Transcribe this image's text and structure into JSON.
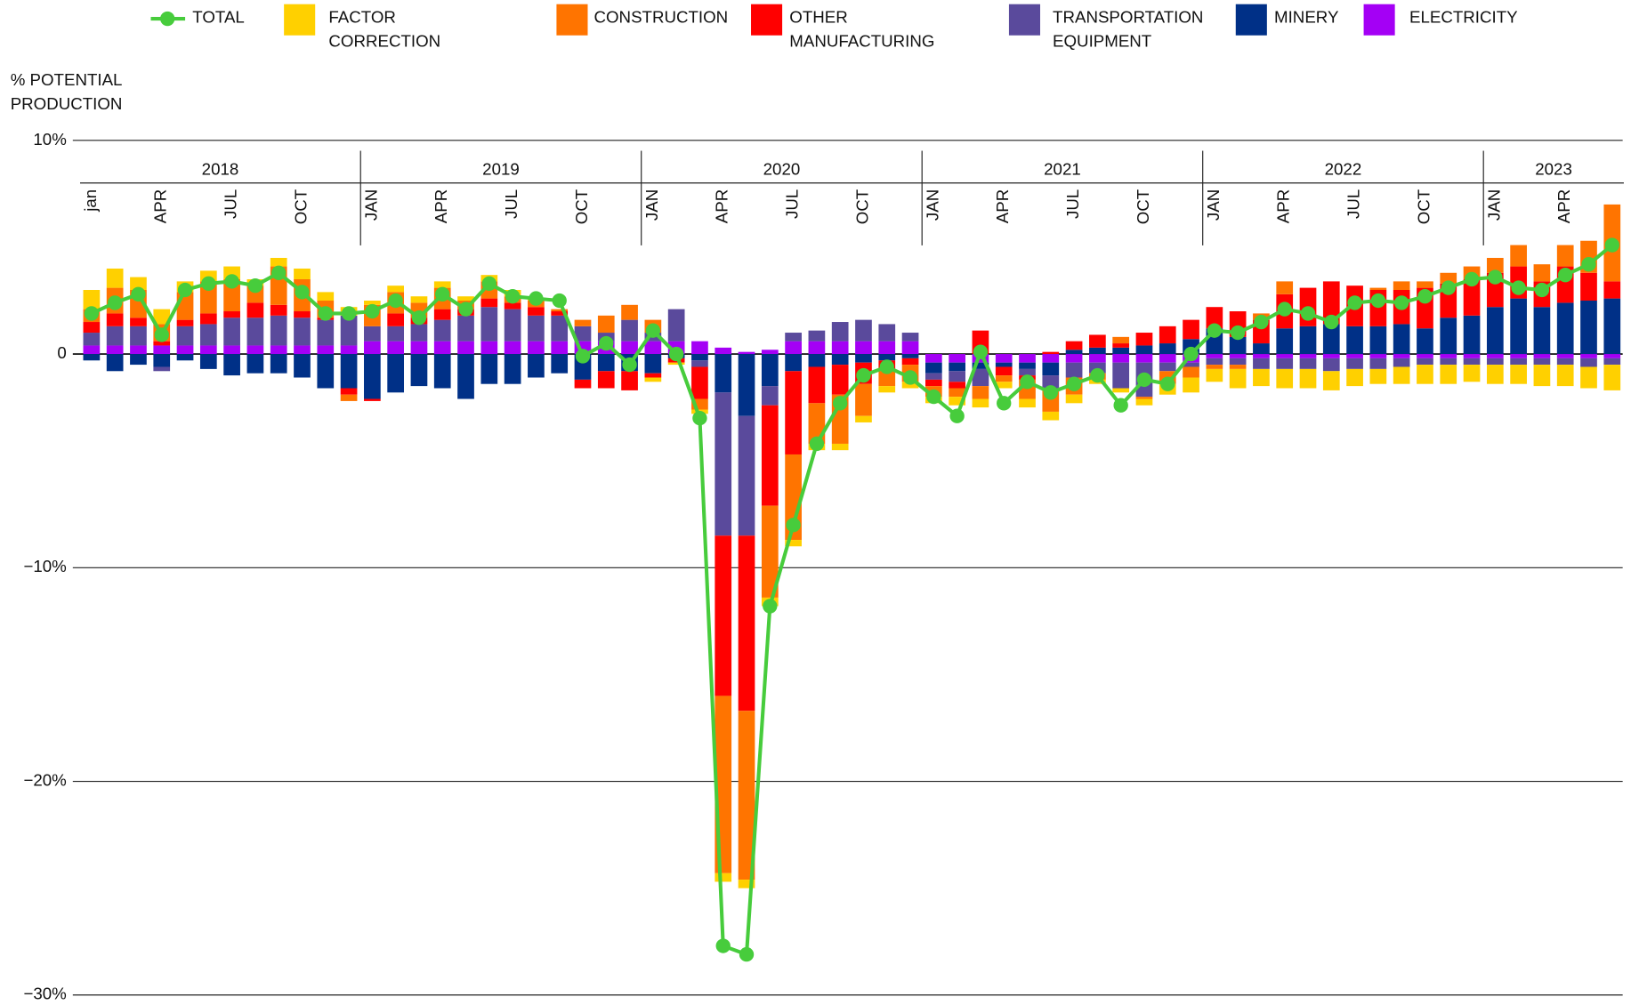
{
  "chart_data": {
    "type": "bar",
    "y_label": "% POTENTIAL PRODUCTION",
    "years": [
      "2018",
      "2019",
      "2020",
      "2021",
      "2022",
      "2023"
    ],
    "categories": [
      "jan",
      null,
      null,
      "APR",
      null,
      null,
      "JUL",
      null,
      null,
      "OCT",
      null,
      null,
      "JAN",
      null,
      null,
      "APR",
      null,
      null,
      "JUL",
      null,
      null,
      "OCT",
      null,
      null,
      "JAN",
      null,
      null,
      "APR",
      null,
      null,
      "JUL",
      null,
      null,
      "OCT",
      null,
      null,
      "JAN",
      null,
      null,
      "APR",
      null,
      null,
      "JUL",
      null,
      null,
      "OCT",
      null,
      null,
      "JAN",
      null,
      null,
      "APR",
      null,
      null,
      "JUL",
      null,
      null,
      "OCT",
      null,
      null,
      "JAN",
      null,
      null,
      "APR",
      null,
      null
    ],
    "ylim": [
      -30,
      10
    ],
    "yticks": [
      {
        "value": -30,
        "label": "−30%"
      },
      {
        "value": -20,
        "label": "−20%"
      },
      {
        "value": -10,
        "label": "−10%"
      },
      0,
      {
        "value": 10,
        "label": "10%"
      }
    ],
    "grid": true,
    "series": [
      {
        "name": "TOTAL",
        "type": "line",
        "color": "#47cc3c",
        "values": [
          1.9,
          2.4,
          2.8,
          0.9,
          3.0,
          3.3,
          3.4,
          3.2,
          3.8,
          2.9,
          1.9,
          1.9,
          2.0,
          2.5,
          1.7,
          2.8,
          2.1,
          3.3,
          2.7,
          2.6,
          2.5,
          -0.1,
          0.5,
          -0.5,
          1.1,
          0.0,
          -3.0,
          -27.7,
          -28.1,
          -11.8,
          -8.0,
          -4.2,
          -2.3,
          -1.0,
          -0.6,
          -1.1,
          -2.0,
          -2.9,
          0.1,
          -2.3,
          -1.3,
          -1.8,
          -1.4,
          -1.0,
          -2.4,
          -1.2,
          -1.4,
          0.0,
          1.1,
          1.0,
          1.5,
          2.1,
          1.9,
          1.5,
          2.4,
          2.5,
          2.4,
          2.7,
          3.1,
          3.5,
          3.6,
          3.1,
          3.0,
          3.7,
          4.2,
          5.1
        ]
      },
      {
        "name": "FACTOR CORRECTION",
        "type": "bar",
        "color": "#ffd000",
        "values": [
          0.9,
          0.9,
          0.6,
          0.7,
          0.5,
          0.5,
          0.6,
          0.3,
          0.4,
          0.5,
          0.4,
          0.4,
          0.2,
          0.3,
          0.3,
          0.3,
          0.2,
          0.3,
          0.3,
          0.1,
          0,
          0,
          0,
          0,
          -0.2,
          -0.1,
          -0.2,
          -0.4,
          -0.4,
          -0.4,
          -0.3,
          -0.3,
          -0.3,
          -0.3,
          -0.3,
          -0.3,
          -0.3,
          -0.4,
          -0.4,
          -0.3,
          -0.4,
          -0.4,
          -0.4,
          -0.2,
          -0.2,
          -0.3,
          -0.5,
          -0.7,
          -0.6,
          -0.9,
          -0.8,
          -0.9,
          -0.9,
          -0.9,
          -0.8,
          -0.7,
          -0.8,
          -0.9,
          -0.9,
          -0.8,
          -0.9,
          -0.9,
          -1.0,
          -1.0,
          -1.0,
          -1.2
        ]
      },
      {
        "name": "CONSTRUCTION",
        "type": "bar",
        "color": "#ff7400",
        "values": [
          0.6,
          1.2,
          1.3,
          0.8,
          1.3,
          1.5,
          1.5,
          0.8,
          1.8,
          1.5,
          0.8,
          -0.3,
          1.0,
          1.0,
          0.7,
          1.0,
          0.4,
          0.8,
          0.3,
          0.3,
          0.1,
          0.3,
          0.8,
          0.7,
          0.6,
          0,
          -0.5,
          -8.3,
          -7.9,
          -4.3,
          -4.0,
          -1.9,
          -2.3,
          -1.5,
          -0.7,
          -0.8,
          -0.5,
          -0.4,
          -0.6,
          -0.3,
          -0.9,
          -1.1,
          -0.8,
          -0.3,
          0.3,
          -0.1,
          -0.6,
          -0.5,
          -0.2,
          -0.2,
          0.3,
          0.6,
          0,
          0,
          0,
          0.1,
          0.4,
          0.3,
          0.5,
          0.6,
          0.7,
          1.0,
          0.8,
          1.0,
          1.5,
          3.6
        ]
      },
      {
        "name": "OTHER MANUFACTURING",
        "type": "bar",
        "color": "#ff0000",
        "values": [
          0.5,
          0.6,
          0.4,
          0.2,
          0.3,
          0.5,
          0.3,
          0.7,
          0.5,
          0.3,
          0.1,
          -0.3,
          -0.1,
          0.6,
          0.3,
          0.5,
          0.3,
          0.4,
          0.3,
          0.4,
          0.2,
          -0.4,
          -0.8,
          -0.9,
          -0.2,
          -0.2,
          -1.5,
          -7.5,
          -8.2,
          -4.7,
          -3.9,
          -1.7,
          -1.4,
          -1.0,
          -0.5,
          -0.3,
          -0.3,
          -0.3,
          1.1,
          -0.4,
          -0.2,
          0.1,
          0.4,
          0.6,
          0.2,
          0.6,
          0.8,
          0.9,
          1.0,
          1.2,
          1.1,
          1.6,
          1.8,
          2.0,
          1.9,
          1.7,
          1.6,
          1.9,
          1.6,
          1.7,
          1.6,
          1.5,
          1.2,
          1.7,
          1.3,
          0.8
        ]
      },
      {
        "name": "TRANSPORTATION EQUIPMENT",
        "type": "bar",
        "color": "#5a4a9c",
        "values": [
          0.6,
          0.9,
          0.9,
          -0.2,
          0.9,
          1.0,
          1.3,
          1.3,
          1.4,
          1.3,
          1.2,
          1.4,
          0.7,
          0.7,
          0.8,
          1.0,
          1.2,
          1.6,
          1.5,
          1.2,
          1.2,
          0.7,
          0.4,
          1.0,
          0.4,
          1.5,
          -0.3,
          -6.7,
          -5.6,
          -0.9,
          0.4,
          0.5,
          0.9,
          1.0,
          0.8,
          0.4,
          -0.3,
          -0.5,
          -0.8,
          0.0,
          -0.3,
          -0.6,
          -0.7,
          -0.5,
          -1.2,
          -1.6,
          -0.4,
          -0.2,
          -0.3,
          -0.3,
          -0.5,
          -0.5,
          -0.5,
          -0.6,
          -0.5,
          -0.5,
          -0.4,
          -0.3,
          -0.3,
          -0.3,
          -0.3,
          -0.3,
          -0.3,
          -0.3,
          -0.4,
          -0.3
        ]
      },
      {
        "name": "MINERY",
        "type": "bar",
        "color": "#003087",
        "values": [
          -0.3,
          -0.8,
          -0.5,
          -0.6,
          -0.3,
          -0.7,
          -1.0,
          -0.9,
          -0.9,
          -1.1,
          -1.6,
          -1.6,
          -2.1,
          -1.8,
          -1.5,
          -1.6,
          -2.1,
          -1.4,
          -1.4,
          -1.1,
          -0.9,
          -1.2,
          -0.8,
          -0.8,
          -0.9,
          -0.2,
          -0.3,
          -1.8,
          -2.9,
          -1.5,
          -0.8,
          -0.6,
          -0.5,
          -0.4,
          -0.3,
          -0.2,
          -0.5,
          -0.4,
          -0.3,
          -0.2,
          -0.3,
          -0.6,
          0.2,
          0.3,
          0.3,
          0.4,
          0.5,
          0.7,
          1.2,
          0.8,
          0.5,
          1.2,
          1.3,
          1.4,
          1.3,
          1.3,
          1.4,
          1.2,
          1.7,
          1.8,
          2.2,
          2.6,
          2.2,
          2.4,
          2.5,
          2.6
        ]
      },
      {
        "name": "ELECTRICITY",
        "type": "bar",
        "color": "#a400f5",
        "values": [
          0.4,
          0.4,
          0.4,
          0.4,
          0.4,
          0.4,
          0.4,
          0.4,
          0.4,
          0.4,
          0.4,
          0.4,
          0.6,
          0.6,
          0.6,
          0.6,
          0.6,
          0.6,
          0.6,
          0.6,
          0.6,
          0.6,
          0.6,
          0.6,
          0.6,
          0.6,
          0.6,
          0.3,
          0.1,
          0.2,
          0.6,
          0.6,
          0.6,
          0.6,
          0.6,
          0.6,
          -0.4,
          -0.4,
          -0.4,
          -0.4,
          -0.4,
          -0.4,
          -0.4,
          -0.4,
          -0.4,
          -0.4,
          -0.4,
          -0.4,
          -0.2,
          -0.2,
          -0.2,
          -0.2,
          -0.2,
          -0.2,
          -0.2,
          -0.2,
          -0.2,
          -0.2,
          -0.2,
          -0.2,
          -0.2,
          -0.2,
          -0.2,
          -0.2,
          -0.2,
          -0.2
        ]
      }
    ]
  }
}
